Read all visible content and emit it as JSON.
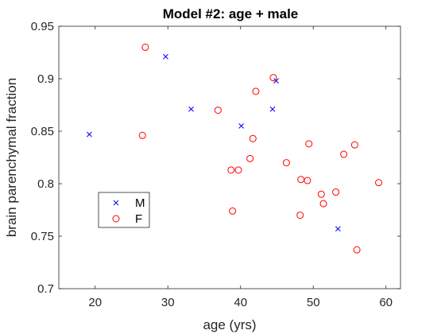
{
  "chart_data": {
    "type": "scatter",
    "title": "Model #2: age + male",
    "xlabel": "age (yrs)",
    "ylabel": "brain parenchymal fraction",
    "xlim": [
      15,
      62
    ],
    "ylim": [
      0.7,
      0.95
    ],
    "xticks": [
      20,
      30,
      40,
      50,
      60
    ],
    "yticks": [
      0.7,
      0.75,
      0.8,
      0.85,
      0.9,
      0.95
    ],
    "ytick_labels": [
      "0.7",
      "0.75",
      "0.8",
      "0.85",
      "0.9",
      "0.95"
    ],
    "grid": false,
    "legend_position": "lower-left",
    "series": [
      {
        "name": "M",
        "marker": "x",
        "color": "#0000ff",
        "points": [
          {
            "x": 19.2,
            "y": 0.847
          },
          {
            "x": 29.7,
            "y": 0.921
          },
          {
            "x": 33.2,
            "y": 0.871
          },
          {
            "x": 40.1,
            "y": 0.855
          },
          {
            "x": 44.4,
            "y": 0.871
          },
          {
            "x": 44.9,
            "y": 0.898
          },
          {
            "x": 53.4,
            "y": 0.757
          }
        ]
      },
      {
        "name": "F",
        "marker": "o",
        "color": "#ff0000",
        "points": [
          {
            "x": 26.9,
            "y": 0.93
          },
          {
            "x": 26.5,
            "y": 0.846
          },
          {
            "x": 36.9,
            "y": 0.87
          },
          {
            "x": 38.7,
            "y": 0.813
          },
          {
            "x": 39.7,
            "y": 0.813
          },
          {
            "x": 38.9,
            "y": 0.774
          },
          {
            "x": 41.3,
            "y": 0.824
          },
          {
            "x": 41.7,
            "y": 0.843
          },
          {
            "x": 42.1,
            "y": 0.888
          },
          {
            "x": 44.5,
            "y": 0.901
          },
          {
            "x": 46.3,
            "y": 0.82
          },
          {
            "x": 48.2,
            "y": 0.77
          },
          {
            "x": 48.3,
            "y": 0.804
          },
          {
            "x": 49.2,
            "y": 0.803
          },
          {
            "x": 49.4,
            "y": 0.838
          },
          {
            "x": 51.1,
            "y": 0.79
          },
          {
            "x": 51.4,
            "y": 0.781
          },
          {
            "x": 53.1,
            "y": 0.792
          },
          {
            "x": 54.2,
            "y": 0.828
          },
          {
            "x": 55.7,
            "y": 0.837
          },
          {
            "x": 56.0,
            "y": 0.737
          },
          {
            "x": 59.0,
            "y": 0.801
          }
        ]
      }
    ]
  }
}
